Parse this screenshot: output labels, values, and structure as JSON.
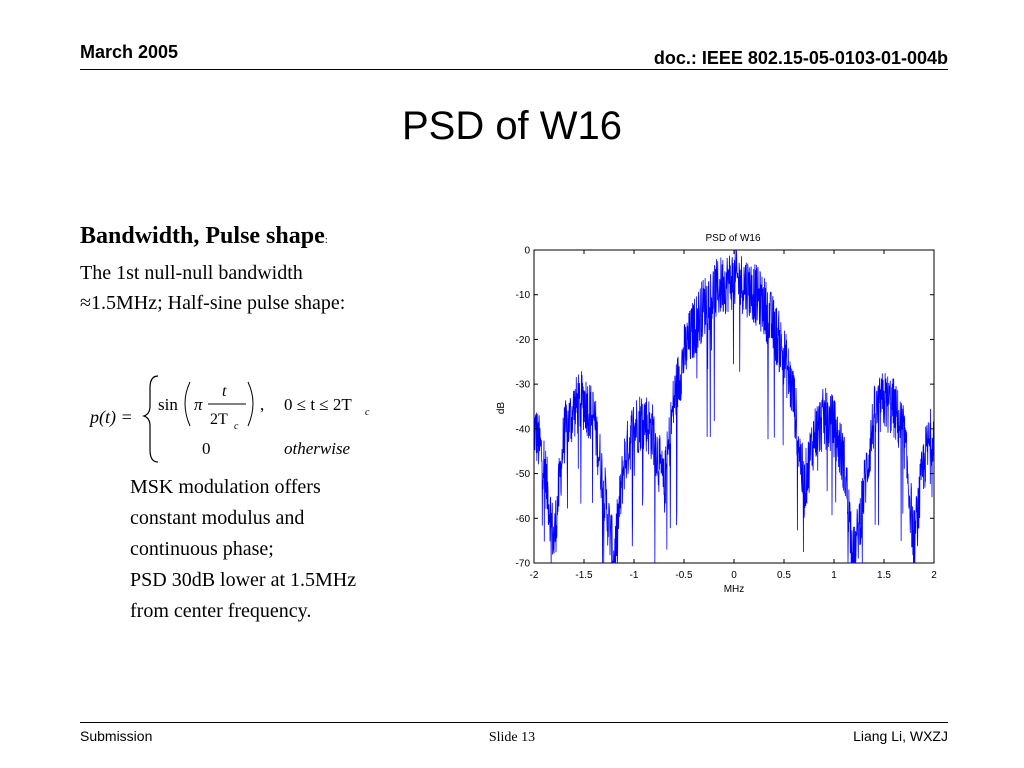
{
  "header": {
    "date": "March 2005",
    "doc_id": "doc.: IEEE 802.15-05-0103-01-004b"
  },
  "slide": {
    "title": "PSD of W16",
    "subtitle": "Bandwidth, Pulse shape",
    "subtitle_colon": ":",
    "intro_lines": [
      "The 1st null-null bandwidth",
      "≈1.5MHz; Half-sine pulse shape:"
    ],
    "equation": {
      "lhs": "p(t) =",
      "sin": "sin",
      "pi": "π",
      "numerator": "t",
      "denominator": "2T",
      "denominator_sub": "c",
      "comma": ",",
      "condition": "0 ≤ t ≤ 2T",
      "condition_sub": "c",
      "zero": "0",
      "otherwise": "otherwise"
    },
    "notes": [
      "MSK modulation offers",
      "constant modulus and",
      "continuous phase;",
      "PSD 30dB lower at 1.5MHz",
      "from center frequency."
    ]
  },
  "chart_data": {
    "type": "line",
    "title": "PSD of W16",
    "xlabel": "MHz",
    "ylabel": "dB",
    "xlim": [
      -2,
      2
    ],
    "ylim": [
      -70,
      0
    ],
    "xticks": [
      "-2",
      "-1.5",
      "-1",
      "-0.5",
      "0",
      "0.5",
      "1",
      "1.5",
      "2"
    ],
    "xtick_values": [
      -2,
      -1.5,
      -1,
      -0.5,
      0,
      0.5,
      1,
      1.5,
      2
    ],
    "yticks": [
      "0",
      "-10",
      "-20",
      "-30",
      "-40",
      "-50",
      "-60",
      "-70"
    ],
    "ytick_values": [
      0,
      -10,
      -20,
      -30,
      -40,
      -50,
      -60,
      -70
    ],
    "grid": false,
    "line_color": "#0000ff",
    "series": [
      {
        "x": [
          -2.0,
          -1.9,
          -1.8,
          -1.7,
          -1.6,
          -1.5,
          -1.4,
          -1.3,
          -1.2,
          -1.1,
          -1.0,
          -0.9,
          -0.8,
          -0.7,
          -0.6,
          -0.5,
          -0.4,
          -0.3,
          -0.2,
          -0.1,
          0.0,
          0.1,
          0.2,
          0.3,
          0.4,
          0.5,
          0.6,
          0.7,
          0.8,
          0.9,
          1.0,
          1.1,
          1.2,
          1.3,
          1.4,
          1.5,
          1.6,
          1.7,
          1.8,
          1.9,
          2.0
        ],
        "values": [
          -36,
          -44,
          -62,
          -38,
          -32,
          -30,
          -34,
          -50,
          -66,
          -44,
          -36,
          -34,
          -38,
          -50,
          -30,
          -20,
          -14,
          -9,
          -6,
          -4,
          -3,
          -4,
          -6,
          -9,
          -14,
          -20,
          -30,
          -50,
          -38,
          -34,
          -36,
          -44,
          -66,
          -50,
          -34,
          -30,
          -32,
          -38,
          -62,
          -44,
          -36
        ]
      }
    ]
  },
  "footer": {
    "left": "Submission",
    "middle": "Slide 13",
    "right": "Liang Li, WXZJ"
  }
}
